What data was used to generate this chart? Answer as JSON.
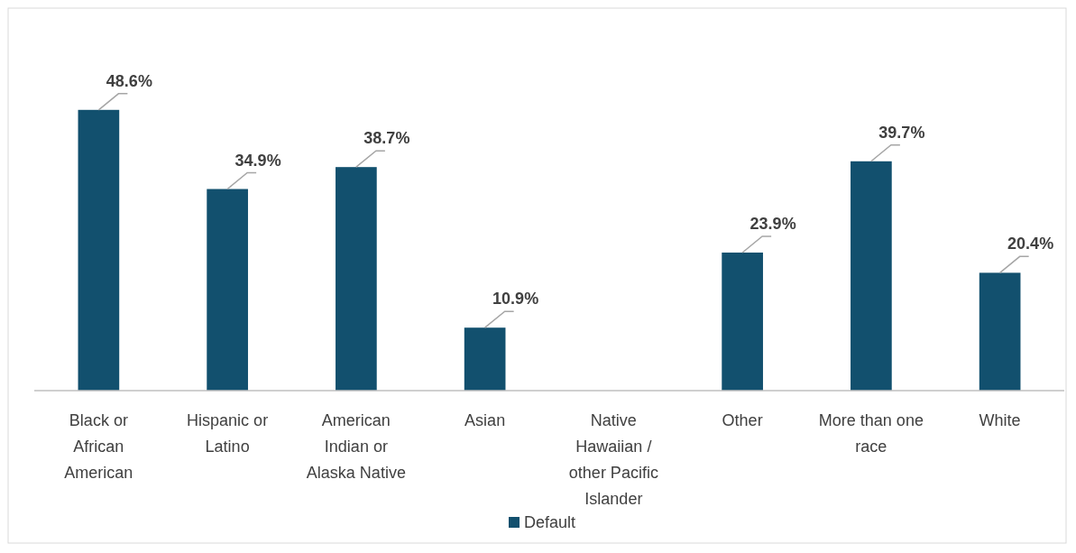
{
  "chart_data": {
    "type": "bar",
    "categories": [
      "Black or African American",
      "Hispanic or Latino",
      "American Indian or Alaska Native",
      "Asian",
      "Native Hawaiian / other Pacific Islander",
      "Other",
      "More than one race",
      "White"
    ],
    "series": [
      {
        "name": "Default",
        "color": "#12506e",
        "values": [
          48.6,
          34.9,
          38.7,
          10.9,
          null,
          23.9,
          39.7,
          20.4
        ],
        "value_labels": [
          "48.6%",
          "34.9%",
          "38.7%",
          "10.9%",
          null,
          "23.9%",
          "39.7%",
          "20.4%"
        ]
      }
    ],
    "legend": "bottom"
  }
}
